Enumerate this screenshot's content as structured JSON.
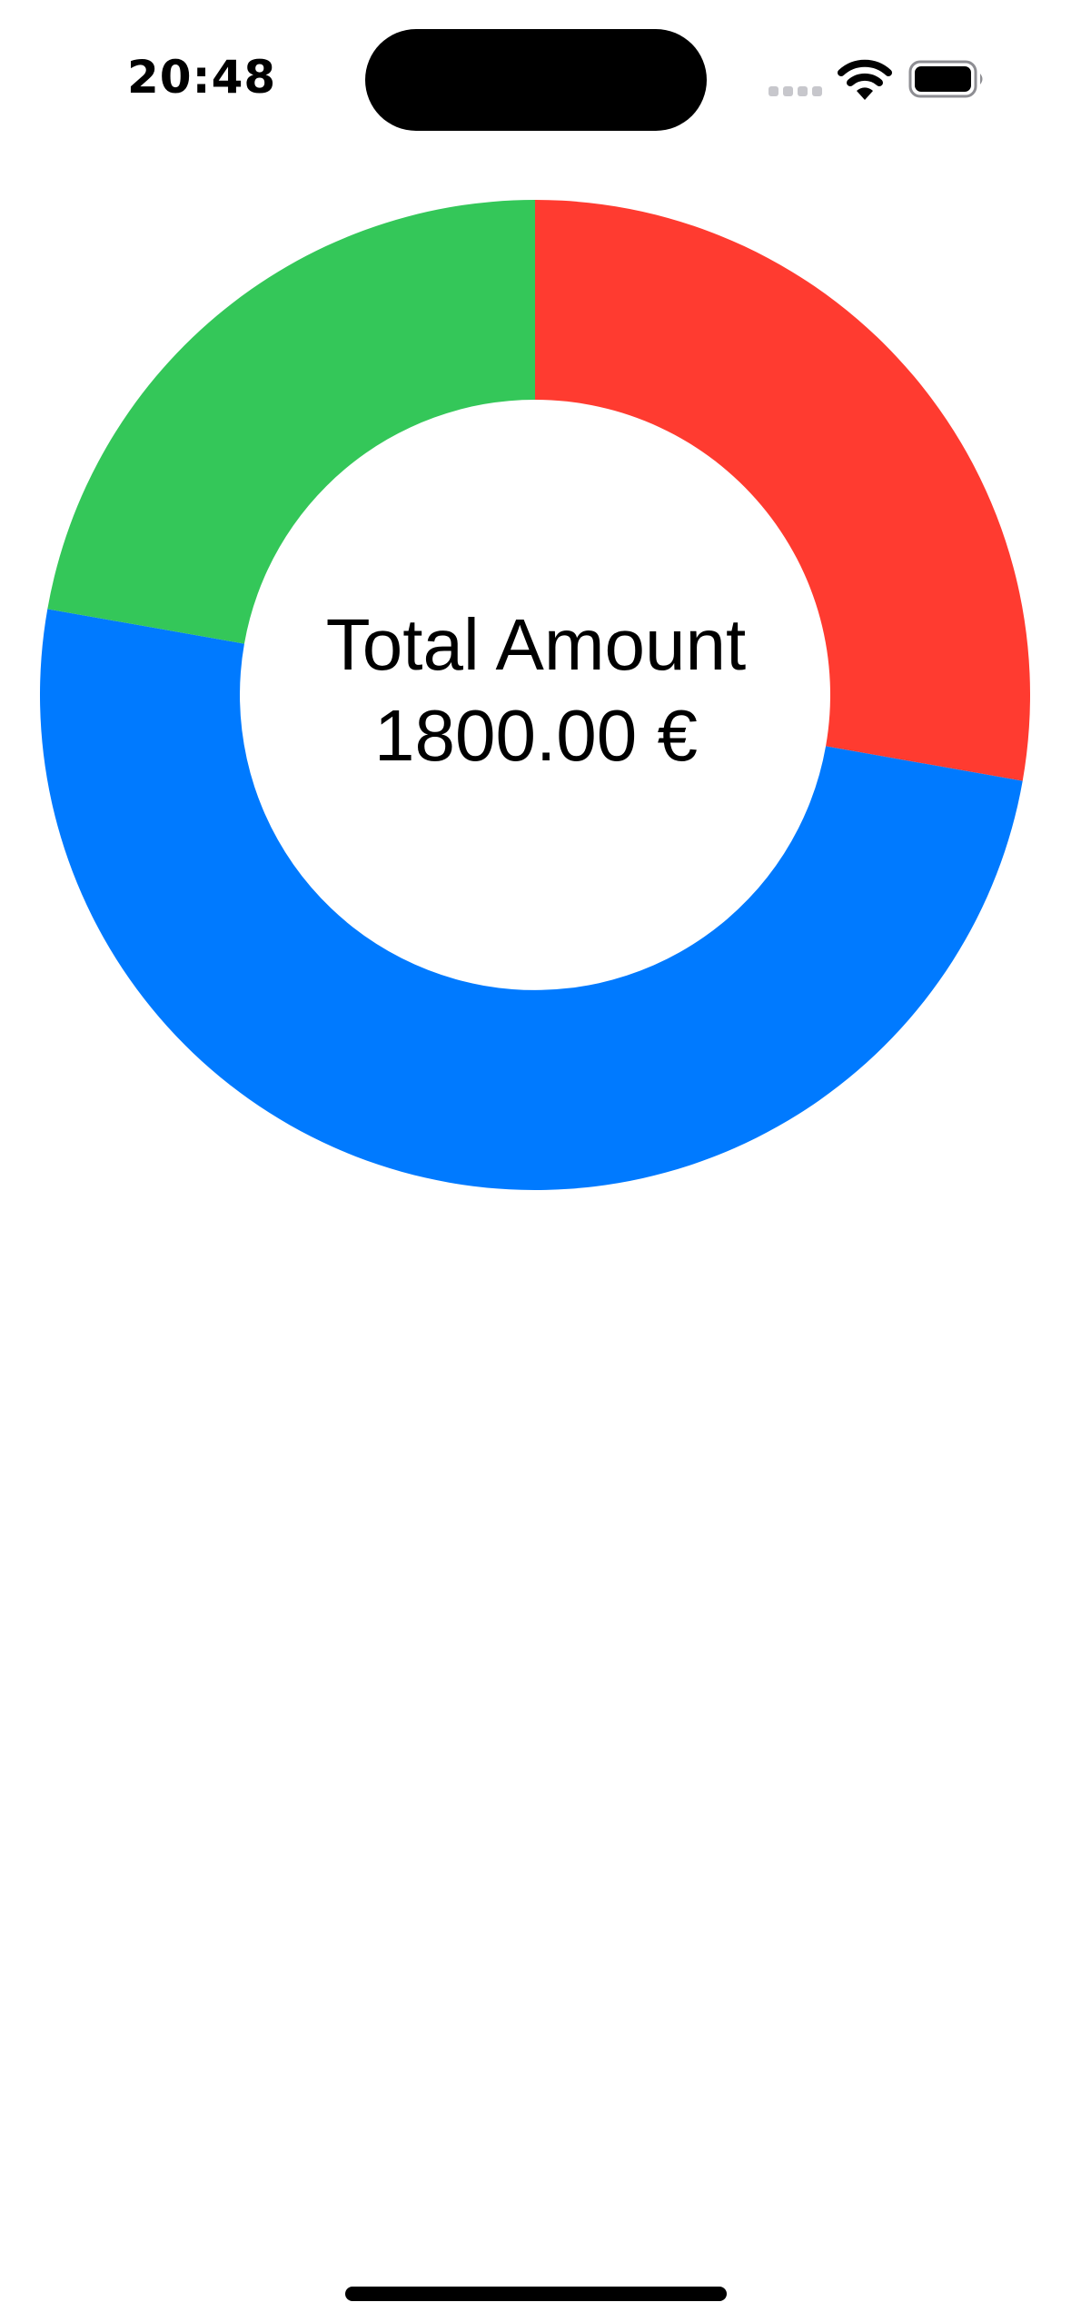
{
  "status_bar": {
    "time": "20:48",
    "icons": [
      "cellular-signal-icon",
      "wifi-icon",
      "battery-icon"
    ]
  },
  "chart_data": {
    "type": "pie",
    "variant": "donut",
    "start_angle_deg": 0,
    "direction": "clockwise",
    "slices": [
      {
        "value": 500,
        "color": "#FF3B30"
      },
      {
        "value": 900,
        "color": "#007AFF"
      },
      {
        "value": 400,
        "color": "#34C759"
      }
    ],
    "center_title": "Total Amount",
    "center_value": "1800.00 €"
  },
  "colors": {
    "background": "#FFFFFF",
    "text": "#000000"
  }
}
